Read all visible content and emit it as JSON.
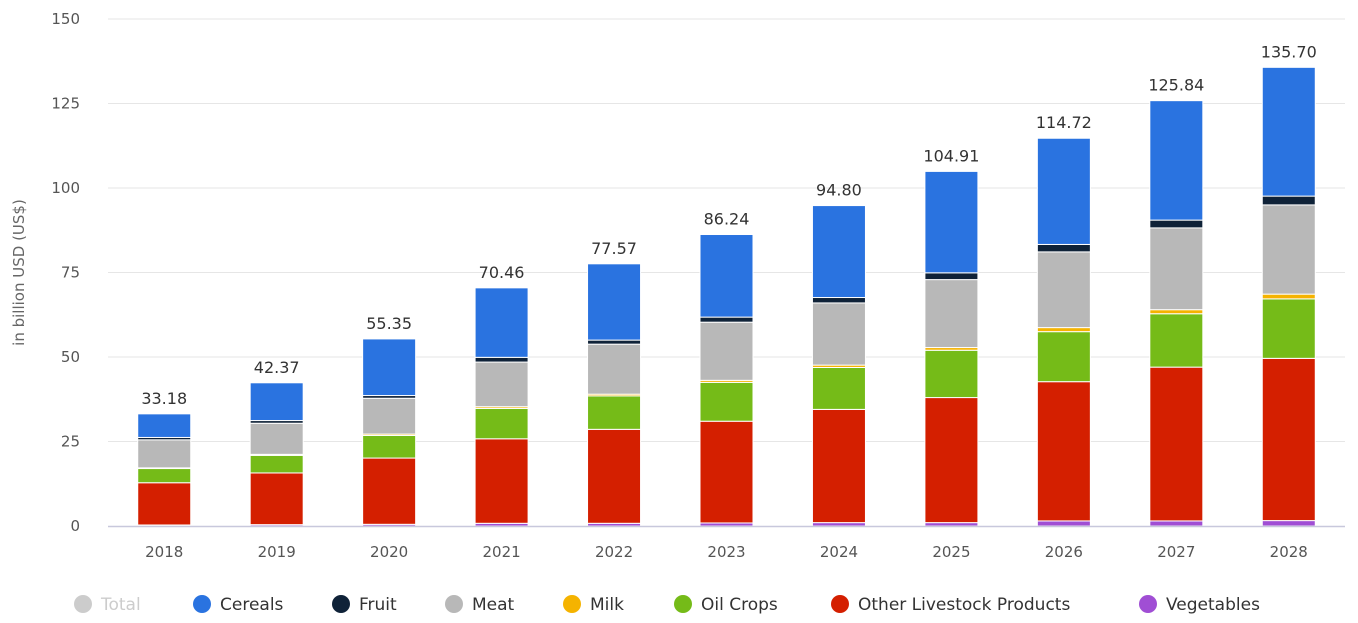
{
  "chart_data": {
    "type": "bar",
    "stacked": true,
    "title": "",
    "xlabel": "",
    "ylabel": "in billion USD (US$)",
    "ylim": [
      0,
      150
    ],
    "yticks": [
      0,
      25,
      50,
      75,
      100,
      125,
      150
    ],
    "ytick_labels": [
      "0",
      "25",
      "50",
      "75",
      "100",
      "125",
      "150"
    ],
    "grid": true,
    "legend_position": "bottom",
    "categories": [
      "2018",
      "2019",
      "2020",
      "2021",
      "2022",
      "2023",
      "2024",
      "2025",
      "2026",
      "2027",
      "2028"
    ],
    "totals": [
      33.18,
      42.37,
      55.35,
      70.46,
      77.57,
      86.24,
      94.8,
      104.91,
      114.72,
      125.84,
      135.7
    ],
    "total_labels": [
      "33.18",
      "42.37",
      "55.35",
      "70.46",
      "77.57",
      "86.24",
      "94.80",
      "104.91",
      "114.72",
      "125.84",
      "135.70"
    ],
    "series": [
      {
        "name": "Vegetables",
        "color": "#a04ed4",
        "values": [
          0.3,
          0.4,
          0.5,
          0.8,
          0.8,
          0.9,
          1.0,
          1.0,
          1.5,
          1.5,
          1.6
        ]
      },
      {
        "name": "Other Livestock Products",
        "color": "#d41f00",
        "values": [
          12.5,
          15.3,
          19.6,
          25.0,
          27.8,
          30.1,
          33.5,
          37.0,
          41.2,
          45.5,
          48.0
        ]
      },
      {
        "name": "Oil Crops",
        "color": "#75bb18",
        "values": [
          4.2,
          5.2,
          6.7,
          9.0,
          9.9,
          11.5,
          12.4,
          14.0,
          14.8,
          15.8,
          17.6
        ]
      },
      {
        "name": "Milk",
        "color": "#f5b300",
        "values": [
          0.2,
          0.3,
          0.4,
          0.5,
          0.5,
          0.6,
          0.7,
          0.8,
          1.2,
          1.2,
          1.4
        ]
      },
      {
        "name": "Meat",
        "color": "#b8b8b8",
        "values": [
          8.3,
          9.2,
          10.6,
          13.2,
          14.8,
          17.2,
          18.4,
          20.1,
          22.4,
          24.2,
          26.4
        ]
      },
      {
        "name": "Fruit",
        "color": "#0f2238",
        "values": [
          0.7,
          0.8,
          0.8,
          1.4,
          1.2,
          1.5,
          1.6,
          2.0,
          2.2,
          2.3,
          2.6
        ]
      },
      {
        "name": "Cereals",
        "color": "#2a73e0",
        "values": [
          6.98,
          11.17,
          16.75,
          20.56,
          22.57,
          24.44,
          27.2,
          30.01,
          31.42,
          35.34,
          38.1
        ]
      }
    ]
  },
  "legend": {
    "items": [
      {
        "name": "Total",
        "color": "#cccccc",
        "muted": true
      },
      {
        "name": "Cereals",
        "color": "#2a73e0",
        "muted": false
      },
      {
        "name": "Fruit",
        "color": "#0f2238",
        "muted": false
      },
      {
        "name": "Meat",
        "color": "#b8b8b8",
        "muted": false
      },
      {
        "name": "Milk",
        "color": "#f5b300",
        "muted": false
      },
      {
        "name": "Oil Crops",
        "color": "#75bb18",
        "muted": false
      },
      {
        "name": "Other Livestock Products",
        "color": "#d41f00",
        "muted": false
      },
      {
        "name": "Vegetables",
        "color": "#a04ed4",
        "muted": false
      }
    ]
  }
}
